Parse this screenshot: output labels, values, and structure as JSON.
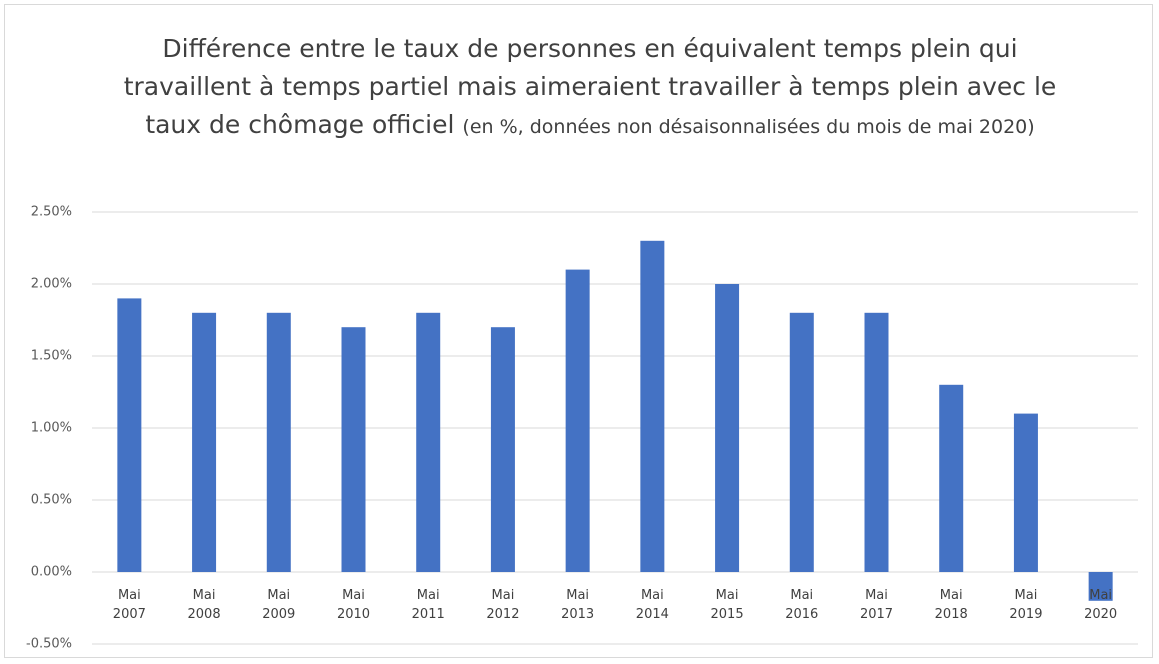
{
  "chart_data": {
    "type": "bar",
    "title": "Différence entre le taux de personnes en équivalent temps plein qui travaillent à temps partiel mais aimeraient travailler à temps plein avec le taux de chômage officiel",
    "subtitle": "(en %, données non désaisonnalisées du mois de mai 2020)",
    "categories": [
      "Mai 2007",
      "Mai 2008",
      "Mai 2009",
      "Mai 2010",
      "Mai 2011",
      "Mai 2012",
      "Mai 2013",
      "Mai 2014",
      "Mai 2015",
      "Mai 2016",
      "Mai 2017",
      "Mai 2018",
      "Mai 2019",
      "Mai 2020"
    ],
    "values": [
      1.9,
      1.8,
      1.8,
      1.7,
      1.8,
      1.7,
      2.1,
      2.3,
      2.0,
      1.8,
      1.8,
      1.3,
      1.1,
      -0.2
    ],
    "color": "#4472c4",
    "ylim": [
      -0.5,
      2.5
    ],
    "yticks": [
      {
        "value": -0.5,
        "label": "-0.50%"
      },
      {
        "value": 0,
        "label": "0.00%"
      },
      {
        "value": 0.5,
        "label": "0.50%"
      },
      {
        "value": 1,
        "label": "1.00%"
      },
      {
        "value": 1.5,
        "label": "1.50%"
      },
      {
        "value": 2,
        "label": "2.00%"
      },
      {
        "value": 2.5,
        "label": "2.50%"
      }
    ],
    "grid": true
  }
}
